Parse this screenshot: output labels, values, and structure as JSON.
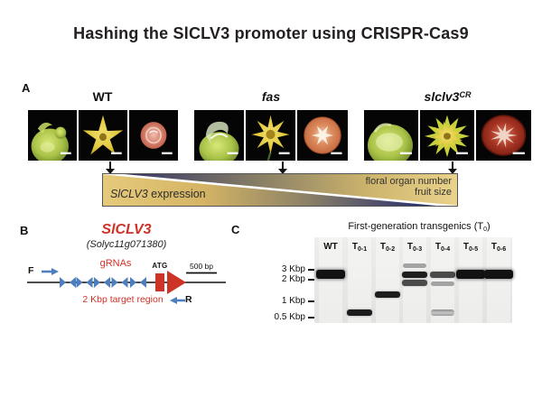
{
  "figure_title": "Hashing the SlCLV3 promoter using CRISPR-Cas9",
  "panelA": {
    "label": "A",
    "groups": [
      {
        "name": "WT"
      },
      {
        "name": "fas"
      },
      {
        "name": "slclv3",
        "sup": "CR"
      }
    ],
    "photos_per_group": [
      "meristem",
      "flower",
      "fruit-cross-section"
    ],
    "band": {
      "left_gene": "SlCLV3",
      "left_rest": " expression",
      "right_line1": "floral organ number",
      "right_line2": "fruit size",
      "gold_color": "#e2c474",
      "navy_color": "#272a68"
    }
  },
  "panelB": {
    "label": "B",
    "gene": "SlCLV3",
    "gene_id": "(Solyc11g071380)",
    "grnas": "gRNAs",
    "atg": "ATG",
    "scale": "500 bp",
    "target": "2 Kbp target region",
    "primer_f": "F",
    "primer_r": "R",
    "red_color": "#d03126",
    "blue_color": "#4d7fbe"
  },
  "panelC": {
    "label": "C",
    "title_prefix": "First-generation transgenics (T",
    "title_sub": "0",
    "title_suffix": ")",
    "markers": [
      {
        "label": "3 Kbp",
        "kbp": 3
      },
      {
        "label": "2 Kbp",
        "kbp": 2
      },
      {
        "label": "1 Kbp",
        "kbp": 1
      },
      {
        "label": "0.5 Kbp",
        "kbp": 0.5
      }
    ],
    "lanes": [
      {
        "main": "WT",
        "sub": "",
        "bands": [
          {
            "kbp": 2.45,
            "level": "thick"
          }
        ]
      },
      {
        "main": "T",
        "sub": "0-1",
        "bands": [
          {
            "kbp": 0.61,
            "level": "dark"
          }
        ]
      },
      {
        "main": "T",
        "sub": "0-2",
        "bands": [
          {
            "kbp": 1.24,
            "level": "dark"
          }
        ]
      },
      {
        "main": "T",
        "sub": "0-3",
        "bands": [
          {
            "kbp": 3.6,
            "level": "faint"
          },
          {
            "kbp": 2.45,
            "level": "dark"
          },
          {
            "kbp": 1.8,
            "level": "medium"
          }
        ]
      },
      {
        "main": "T",
        "sub": "0-4",
        "bands": [
          {
            "kbp": 2.45,
            "level": "medium"
          },
          {
            "kbp": 1.75,
            "level": "faint"
          },
          {
            "kbp": 0.62,
            "level": "light"
          }
        ]
      },
      {
        "main": "T",
        "sub": "0-5",
        "bands": [
          {
            "kbp": 2.45,
            "level": "thick"
          }
        ]
      },
      {
        "main": "T",
        "sub": "0-6",
        "bands": [
          {
            "kbp": 2.45,
            "level": "thick"
          }
        ]
      }
    ]
  }
}
